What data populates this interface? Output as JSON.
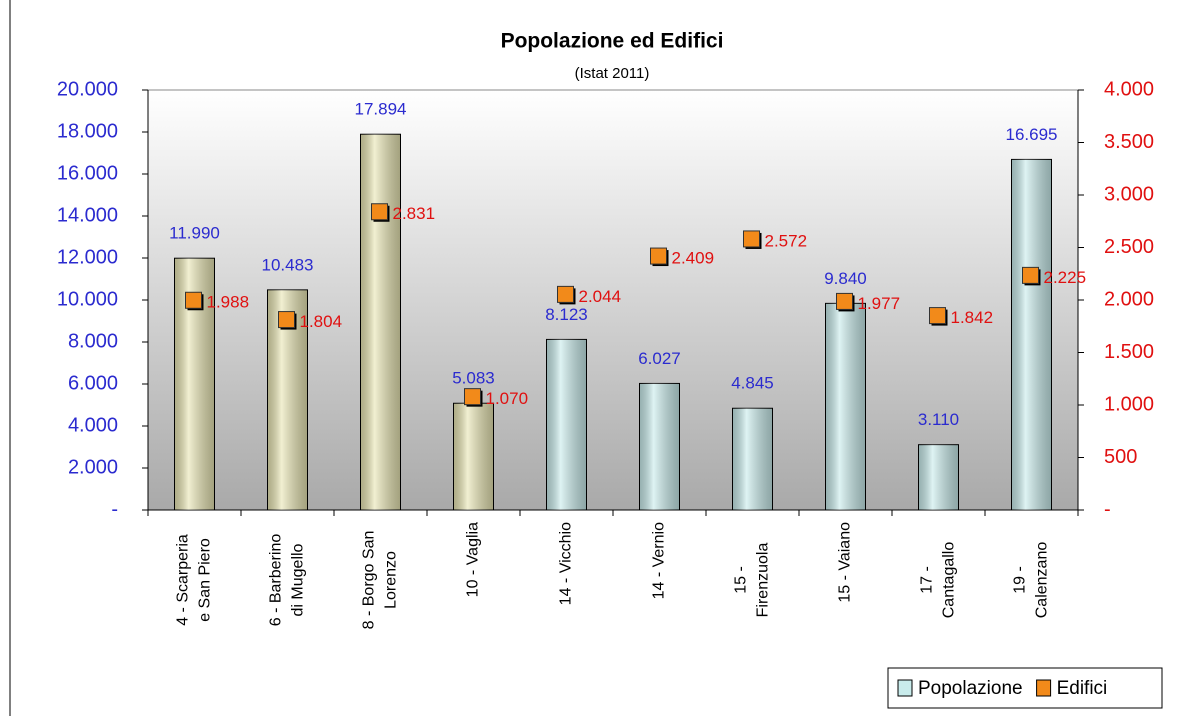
{
  "chart_data": {
    "type": "bar",
    "title": "Popolazione ed Edifici",
    "subtitle": "(Istat 2011)",
    "categories": [
      [
        "4 - Scarperia",
        "e San Piero"
      ],
      [
        "6 - Barberino",
        "di Mugello"
      ],
      [
        "8 - Borgo San",
        "Lorenzo"
      ],
      [
        "10 - Vaglia"
      ],
      [
        "14 - Vicchio"
      ],
      [
        "14 - Vernio"
      ],
      [
        "15 -",
        "Firenzuola"
      ],
      [
        "15 - Vaiano"
      ],
      [
        "17 -",
        "Cantagallo"
      ],
      [
        "19 -",
        "Calenzano"
      ]
    ],
    "series": [
      {
        "name": "Popolazione",
        "type": "bar",
        "color": "#c9ecec",
        "colors": [
          "#e9e6b4",
          "#e9e6b4",
          "#e9e6b4",
          "#e9e6b4",
          "#c9ecec",
          "#c9ecec",
          "#c9ecec",
          "#c9ecec",
          "#c9ecec",
          "#c9ecec"
        ],
        "values": [
          11990,
          10483,
          17894,
          5083,
          8123,
          6027,
          4845,
          9840,
          3110,
          16695
        ],
        "value_labels": [
          "11.990",
          "10.483",
          "17.894",
          "5.083",
          "8.123",
          "6.027",
          "4.845",
          "9.840",
          "3.110",
          "16.695"
        ]
      },
      {
        "name": "Edifici",
        "type": "scatter",
        "axis": "y2",
        "color": "#f28a1a",
        "values": [
          1988,
          1804,
          2831,
          1070,
          2044,
          2409,
          2572,
          1977,
          1842,
          2225
        ],
        "value_labels": [
          "1.988",
          "1.804",
          "2.831",
          "1.070",
          "2.044",
          "2.409",
          "2.572",
          "1.977",
          "1.842",
          "2.225"
        ]
      }
    ],
    "ylim": [
      0,
      20000
    ],
    "yticks": [
      {
        "value": 0,
        "label": "-"
      },
      {
        "value": 2000,
        "label": "2.000"
      },
      {
        "value": 4000,
        "label": "4.000"
      },
      {
        "value": 6000,
        "label": "6.000"
      },
      {
        "value": 8000,
        "label": "8.000"
      },
      {
        "value": 10000,
        "label": "10.000"
      },
      {
        "value": 12000,
        "label": "12.000"
      },
      {
        "value": 14000,
        "label": "14.000"
      },
      {
        "value": 16000,
        "label": "16.000"
      },
      {
        "value": 18000,
        "label": "18.000"
      },
      {
        "value": 20000,
        "label": "20.000"
      }
    ],
    "y2lim": [
      0,
      4000
    ],
    "y2ticks": [
      {
        "value": 0,
        "label": "-"
      },
      500,
      {
        "value": 1000,
        "label": "1.000"
      },
      {
        "value": 1500,
        "label": "1.500"
      },
      {
        "value": 2000,
        "label": "2.000"
      },
      {
        "value": 2500,
        "label": "2.500"
      },
      {
        "value": 3000,
        "label": "3.000"
      },
      {
        "value": 3500,
        "label": "3.500"
      },
      {
        "value": 4000,
        "label": "4.000"
      }
    ],
    "legend": "bottom-right"
  }
}
